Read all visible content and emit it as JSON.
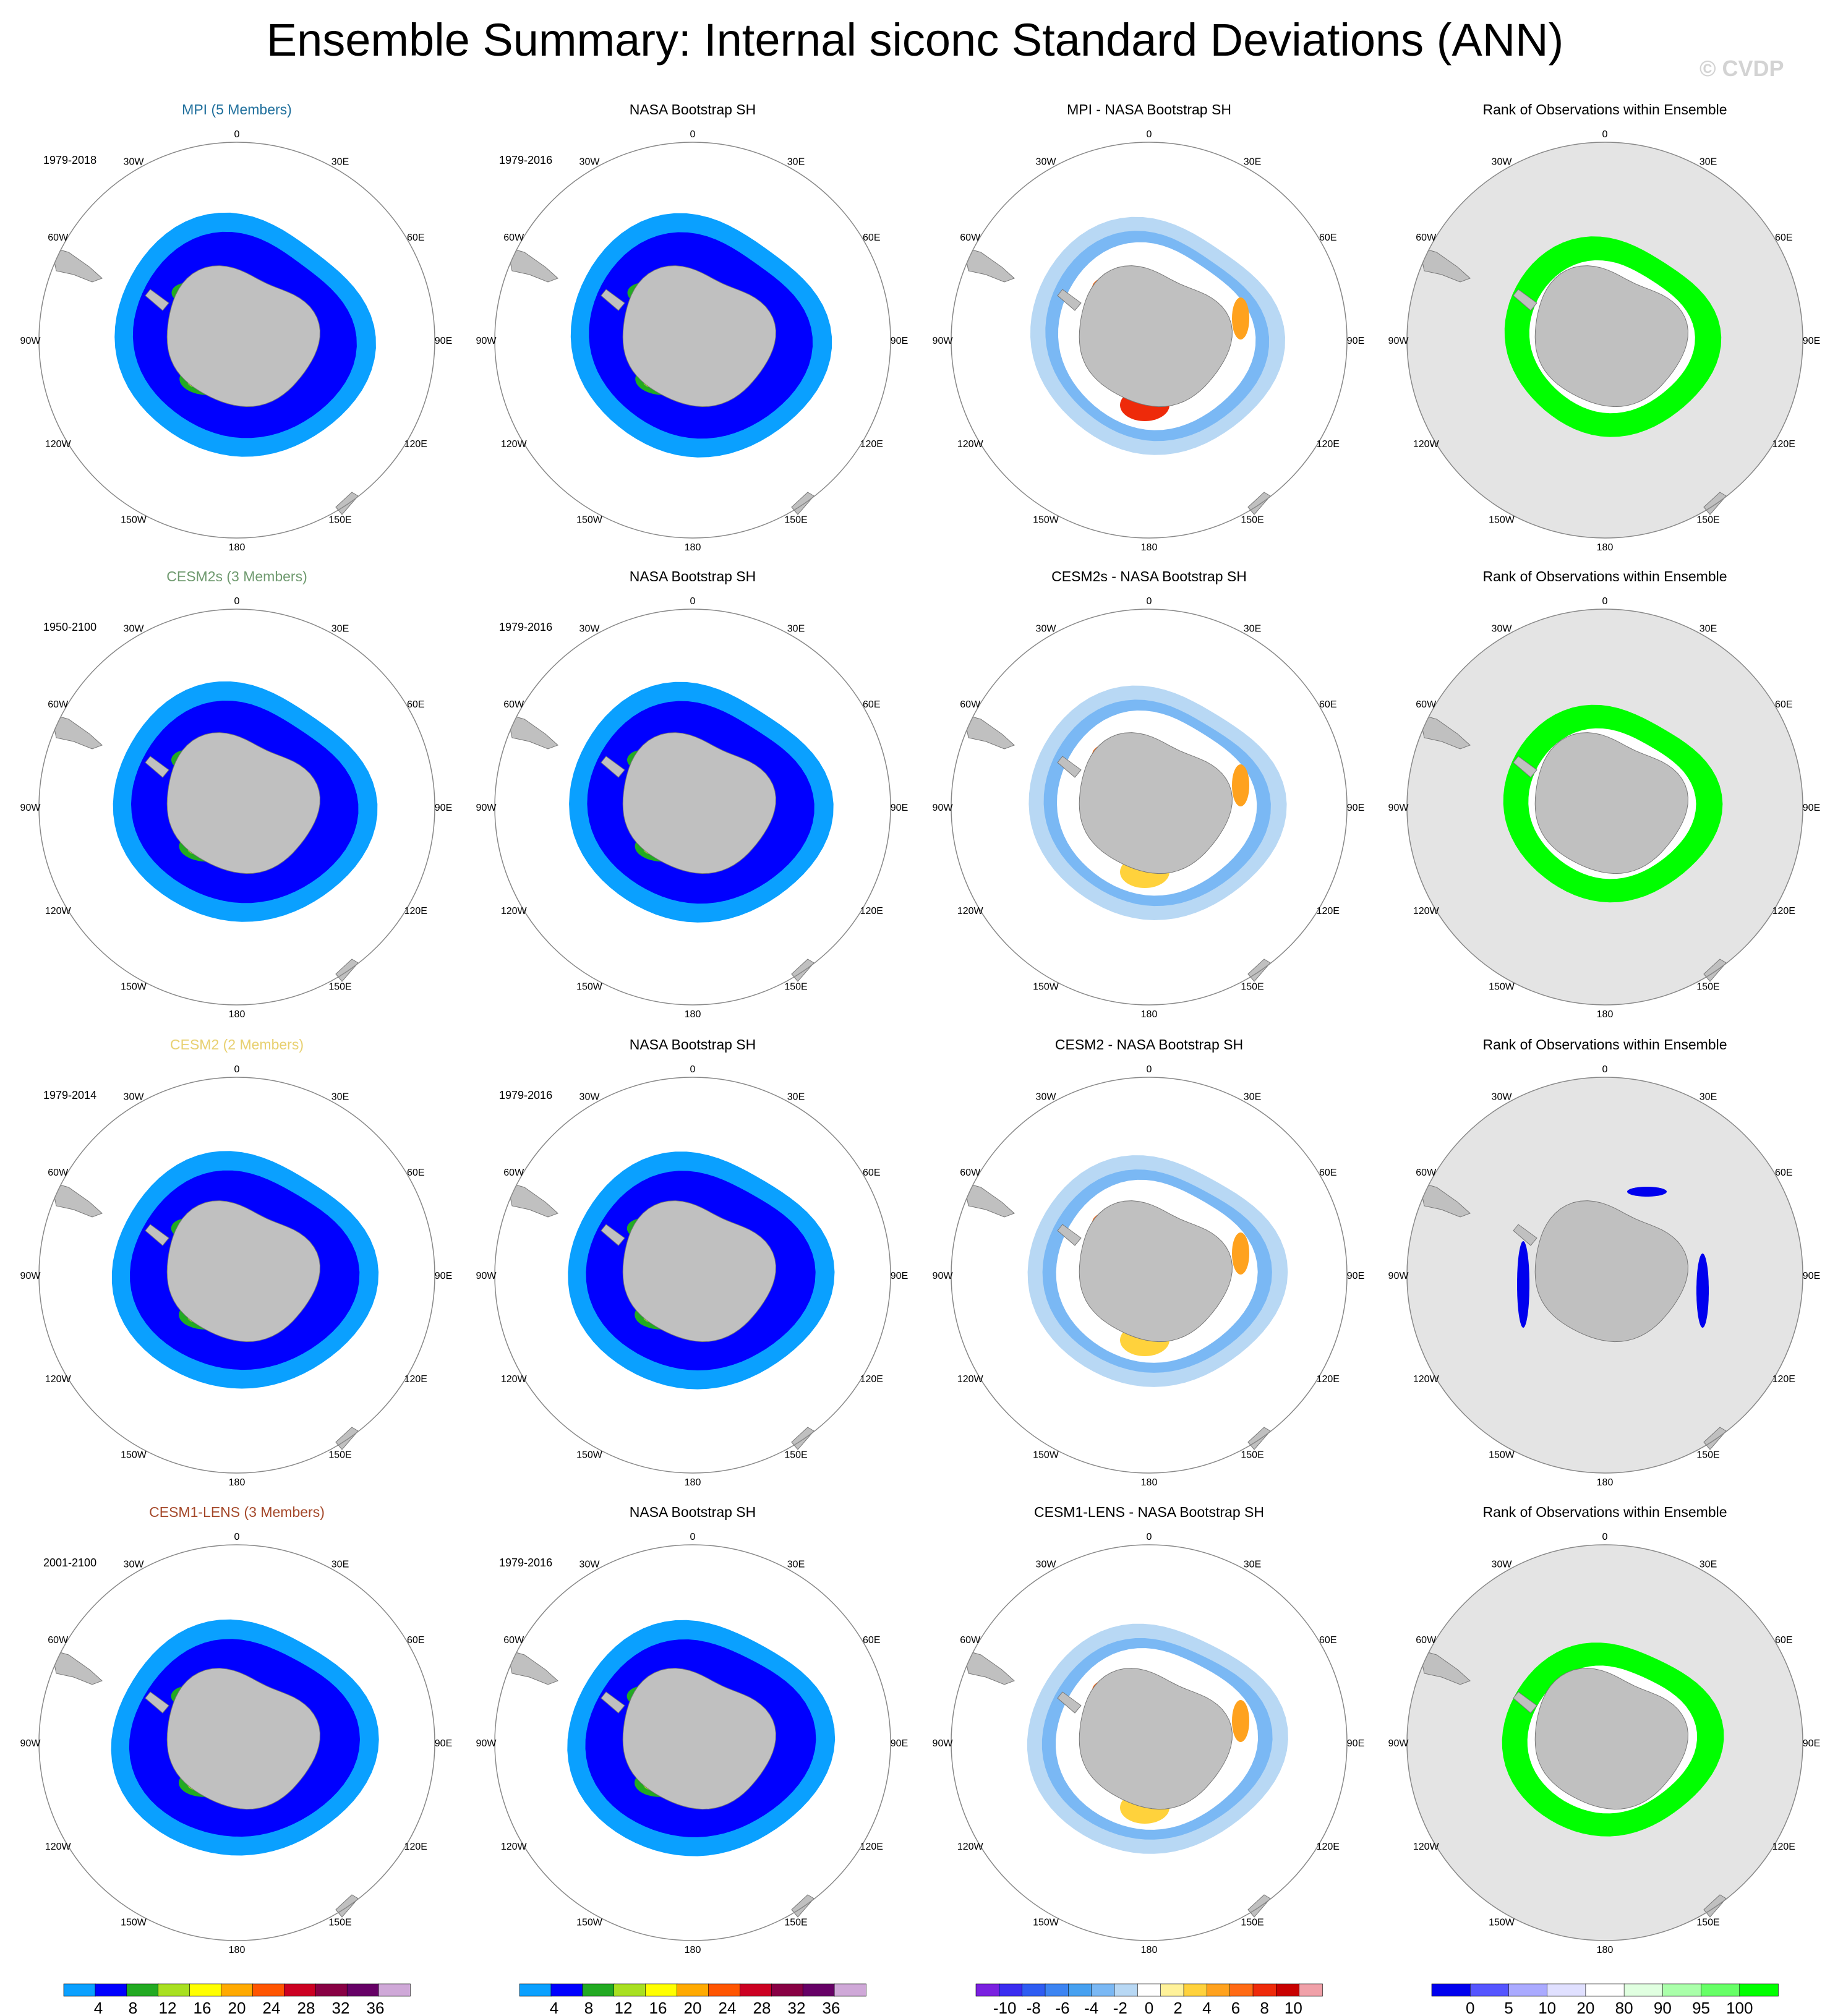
{
  "title": "Ensemble Summary: Internal siconc Standard Deviations (ANN)",
  "watermark": "© CVDP",
  "colors": {
    "land": "#c0c0c0",
    "ocean": "#ffffff",
    "rank_background": "#e4e4e4",
    "outline": "#888888",
    "member_title_colors": {
      "MPI": "#1f6f9c",
      "CESM2s": "#6f9a6f",
      "CESM2": "#e8d070",
      "CESM1-LENS": "#a5492b"
    },
    "std_palette": [
      "#0aa0ff",
      "#0000ff",
      "#22aa22",
      "#a8e020",
      "#ffff00",
      "#ffaa00",
      "#ff5500",
      "#cc0022",
      "#880044",
      "#660066",
      "#cfa8d8"
    ],
    "diff_palette": [
      "#7a20e0",
      "#3a2cf0",
      "#2e5cf2",
      "#3c84f2",
      "#46a0f0",
      "#7ab8f4",
      "#b8d8f4",
      "#ffffff",
      "#fff29a",
      "#ffd23c",
      "#ffa21e",
      "#ff6a14",
      "#ee2a0a",
      "#c80000",
      "#f0a0a8"
    ],
    "rank_palette": [
      "#0000ee",
      "#5555ff",
      "#aaaaff",
      "#e0e0ff",
      "#ffffff",
      "#e0ffe0",
      "#aaffaa",
      "#66ff66",
      "#00ff00"
    ]
  },
  "lon_labels": [
    "0",
    "30E",
    "60E",
    "90E",
    "120E",
    "150E",
    "180",
    "150W",
    "120W",
    "90W",
    "60W",
    "30W"
  ],
  "chart_data": {
    "type": "heatmap",
    "variable": "siconc",
    "season": "ANN",
    "rows": [
      {
        "model": "MPI",
        "panels": [
          {
            "kind": "std",
            "title": "MPI (5 Members)",
            "period": "1979-2018",
            "colorkey": "MPI"
          },
          {
            "kind": "std",
            "title": "NASA Bootstrap SH",
            "period": "1979-2016"
          },
          {
            "kind": "diff",
            "title": "MPI - NASA Bootstrap SH"
          },
          {
            "kind": "rank",
            "title": "Rank of Observations within Ensemble"
          }
        ]
      },
      {
        "model": "CESM2s",
        "panels": [
          {
            "kind": "std",
            "title": "CESM2s (3 Members)",
            "period": "1950-2100",
            "colorkey": "CESM2s"
          },
          {
            "kind": "std",
            "title": "NASA Bootstrap SH",
            "period": "1979-2016"
          },
          {
            "kind": "diff",
            "title": "CESM2s - NASA Bootstrap SH"
          },
          {
            "kind": "rank",
            "title": "Rank of Observations within Ensemble"
          }
        ]
      },
      {
        "model": "CESM2",
        "panels": [
          {
            "kind": "std",
            "title": "CESM2 (2 Members)",
            "period": "1979-2014",
            "colorkey": "CESM2"
          },
          {
            "kind": "std",
            "title": "NASA Bootstrap SH",
            "period": "1979-2016"
          },
          {
            "kind": "diff",
            "title": "CESM2 - NASA Bootstrap SH"
          },
          {
            "kind": "rank",
            "title": "Rank of Observations within Ensemble"
          }
        ]
      },
      {
        "model": "CESM1-LENS",
        "panels": [
          {
            "kind": "std",
            "title": "CESM1-LENS (3 Members)",
            "period": "2001-2100",
            "colorkey": "CESM1-LENS"
          },
          {
            "kind": "std",
            "title": "NASA Bootstrap SH",
            "period": "1979-2016"
          },
          {
            "kind": "diff",
            "title": "CESM1-LENS - NASA Bootstrap SH"
          },
          {
            "kind": "rank",
            "title": "Rank of Observations within Ensemble"
          }
        ]
      }
    ],
    "colorbars": [
      {
        "kind": "std",
        "unit": "%",
        "ticks": [
          "4",
          "8",
          "12",
          "16",
          "20",
          "24",
          "28",
          "32",
          "36"
        ]
      },
      {
        "kind": "std",
        "unit": "%",
        "ticks": [
          "4",
          "8",
          "12",
          "16",
          "20",
          "24",
          "28",
          "32",
          "36"
        ]
      },
      {
        "kind": "diff",
        "unit": "%",
        "ticks": [
          "-10",
          "-8",
          "-6",
          "-4",
          "-2",
          "0",
          "2",
          "4",
          "6",
          "8",
          "10"
        ]
      },
      {
        "kind": "rank",
        "unit": "%",
        "ticks": [
          "0",
          "5",
          "10",
          "20",
          "80",
          "90",
          "95",
          "100"
        ]
      }
    ]
  }
}
